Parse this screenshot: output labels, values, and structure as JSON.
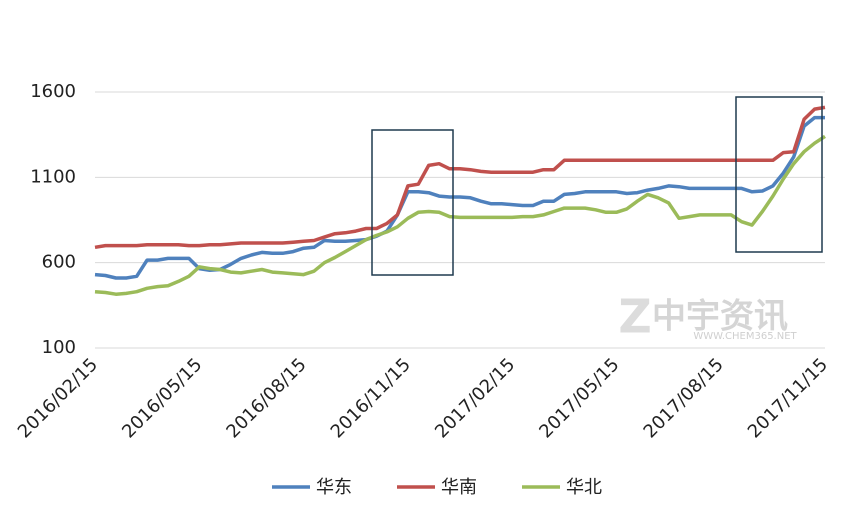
{
  "chart_data": {
    "type": "line",
    "categories": [
      "2016/02/15",
      null,
      null,
      null,
      null,
      null,
      null,
      null,
      null,
      null,
      "2016/05/15",
      null,
      null,
      null,
      null,
      null,
      null,
      null,
      null,
      null,
      "2016/08/15",
      null,
      null,
      null,
      null,
      null,
      null,
      null,
      null,
      null,
      "2016/11/15",
      null,
      null,
      null,
      null,
      null,
      null,
      null,
      null,
      null,
      "2017/02/15",
      null,
      null,
      null,
      null,
      null,
      null,
      null,
      null,
      null,
      "2017/05/15",
      null,
      null,
      null,
      null,
      null,
      null,
      null,
      null,
      null,
      "2017/08/15",
      null,
      null,
      null,
      null,
      null,
      null,
      null,
      null,
      null,
      "2017/11/15"
    ],
    "series": [
      {
        "name": "华东",
        "color": "#4f81bd",
        "values": [
          530,
          525,
          510,
          510,
          520,
          615,
          615,
          625,
          625,
          625,
          565,
          555,
          560,
          590,
          625,
          645,
          660,
          655,
          655,
          665,
          685,
          690,
          730,
          725,
          725,
          730,
          735,
          755,
          785,
          880,
          1015,
          1015,
          1010,
          990,
          985,
          985,
          980,
          960,
          945,
          945,
          940,
          935,
          935,
          960,
          960,
          1000,
          1005,
          1015,
          1015,
          1015,
          1015,
          1005,
          1010,
          1025,
          1035,
          1050,
          1045,
          1035,
          1035,
          1035,
          1035,
          1035,
          1035,
          1015,
          1020,
          1050,
          1125,
          1220,
          1400,
          1450,
          1450
        ]
      },
      {
        "name": "华南",
        "color": "#c0504d",
        "values": [
          690,
          700,
          700,
          700,
          700,
          705,
          705,
          705,
          705,
          700,
          700,
          705,
          705,
          710,
          715,
          715,
          715,
          715,
          715,
          720,
          725,
          730,
          750,
          770,
          775,
          785,
          800,
          800,
          830,
          880,
          1050,
          1060,
          1170,
          1180,
          1150,
          1150,
          1145,
          1135,
          1130,
          1130,
          1130,
          1130,
          1130,
          1145,
          1145,
          1200,
          1200,
          1200,
          1200,
          1200,
          1200,
          1200,
          1200,
          1200,
          1200,
          1200,
          1200,
          1200,
          1200,
          1200,
          1200,
          1200,
          1200,
          1200,
          1200,
          1200,
          1245,
          1250,
          1440,
          1500,
          1510
        ]
      },
      {
        "name": "华北",
        "color": "#9bbb59",
        "values": [
          430,
          425,
          415,
          420,
          430,
          450,
          460,
          465,
          490,
          520,
          575,
          565,
          560,
          545,
          540,
          550,
          560,
          545,
          540,
          535,
          530,
          550,
          600,
          630,
          665,
          700,
          735,
          760,
          780,
          810,
          860,
          895,
          900,
          895,
          870,
          865,
          865,
          865,
          865,
          865,
          865,
          870,
          870,
          880,
          900,
          920,
          920,
          920,
          910,
          895,
          895,
          915,
          960,
          1000,
          980,
          950,
          860,
          870,
          880,
          880,
          880,
          880,
          840,
          820,
          900,
          990,
          1090,
          1180,
          1250,
          1300,
          1340
        ]
      }
    ],
    "ylim": [
      100,
      1600
    ],
    "yticks": [
      100,
      600,
      1100,
      1600
    ],
    "grid": true,
    "legend": "bottom",
    "watermark": "中宇资讯",
    "watermark_url": "WWW.CHEM365.NET"
  }
}
